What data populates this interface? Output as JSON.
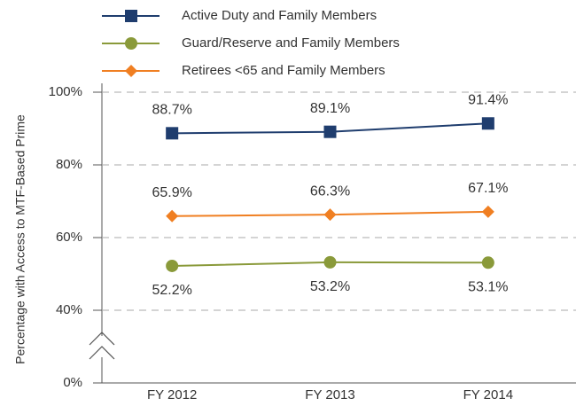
{
  "chart_data": {
    "type": "line",
    "y_label": "Percentage with Access to MTF-Based Prime",
    "categories": [
      "FY 2012",
      "FY 2013",
      "FY 2014"
    ],
    "series": [
      {
        "name": "Active Duty and Family Members",
        "color": "#1f3d6e",
        "marker": "square",
        "values": [
          88.7,
          89.1,
          91.4
        ],
        "value_labels": [
          "88.7%",
          "89.1%",
          "91.4%"
        ]
      },
      {
        "name": "Guard/Reserve and Family Members",
        "color": "#8a9a3a",
        "marker": "circle",
        "values": [
          52.2,
          53.2,
          53.1
        ],
        "value_labels": [
          "52.2%",
          "53.2%",
          "53.1%"
        ]
      },
      {
        "name": "Retirees <65 and Family Members",
        "color": "#f07f22",
        "marker": "diamond",
        "values": [
          65.9,
          66.3,
          67.1
        ],
        "value_labels": [
          "65.9%",
          "66.3%",
          "67.1%"
        ]
      }
    ],
    "ylim": [
      0,
      100
    ],
    "axis_break": [
      0,
      40
    ],
    "yticks": [
      {
        "value": 0,
        "label": "0%"
      },
      {
        "value": 40,
        "label": "40%"
      },
      {
        "value": 60,
        "label": "60%"
      },
      {
        "value": 80,
        "label": "80%"
      },
      {
        "value": 100,
        "label": "100%"
      }
    ],
    "grid": true
  }
}
